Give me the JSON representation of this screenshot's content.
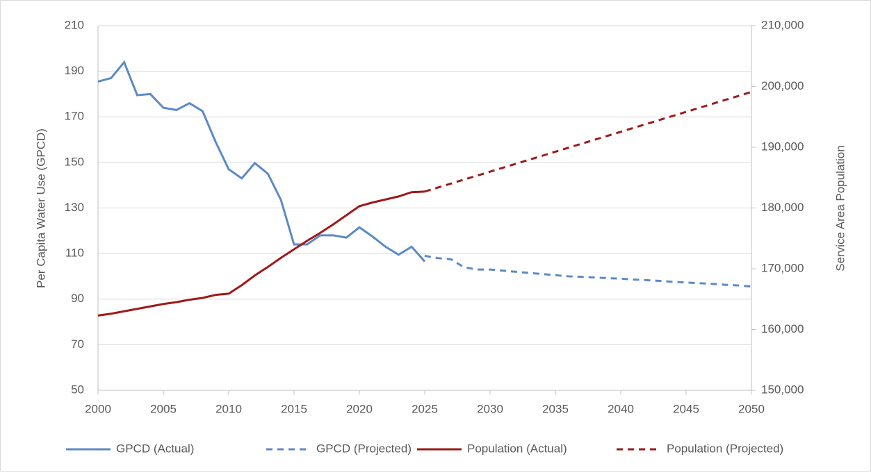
{
  "chart_data": {
    "type": "line",
    "y_label": "Per Capita Water Use (GPCD)",
    "y2_label": "Service Area Population",
    "x": [
      2000,
      2001,
      2002,
      2003,
      2004,
      2005,
      2006,
      2007,
      2008,
      2009,
      2010,
      2011,
      2012,
      2013,
      2014,
      2015,
      2016,
      2017,
      2018,
      2019,
      2020,
      2021,
      2022,
      2023,
      2024,
      2025,
      2026,
      2027,
      2028,
      2029,
      2030,
      2031,
      2032,
      2033,
      2034,
      2035,
      2036,
      2037,
      2038,
      2039,
      2040,
      2041,
      2042,
      2043,
      2044,
      2045,
      2046,
      2047,
      2048,
      2049,
      2050
    ],
    "xlim": [
      2000,
      2050
    ],
    "xticks": [
      2000,
      2005,
      2010,
      2015,
      2020,
      2025,
      2030,
      2035,
      2040,
      2045,
      2050
    ],
    "ylim": [
      50,
      210
    ],
    "yticks": [
      50,
      70,
      90,
      110,
      130,
      150,
      170,
      190,
      210
    ],
    "y2lim": [
      150000,
      210000
    ],
    "y2ticks": [
      {
        "value": 150000,
        "label": "150,000"
      },
      {
        "value": 160000,
        "label": "160,000"
      },
      {
        "value": 170000,
        "label": "170,000"
      },
      {
        "value": 180000,
        "label": "180,000"
      },
      {
        "value": 190000,
        "label": "190,000"
      },
      {
        "value": 200000,
        "label": "200,000"
      },
      {
        "value": 210000,
        "label": "210,000"
      }
    ],
    "grid": true,
    "legend": "bottom",
    "series": [
      {
        "name": "GPCD (Actual)",
        "color": "#5b8ac6",
        "dashed": false,
        "values": [
          185.5,
          187,
          194,
          179.5,
          180,
          174,
          173,
          176,
          172.5,
          159,
          147,
          143,
          149.7,
          145,
          133.5,
          114,
          114,
          118,
          118,
          117,
          121.5,
          117.5,
          113,
          109.5,
          113,
          106.5,
          null,
          null,
          null,
          null,
          null,
          null,
          null,
          null,
          null,
          null,
          null,
          null,
          null,
          null,
          null,
          null,
          null,
          null,
          null,
          null,
          null,
          null,
          null,
          null,
          null
        ]
      },
      {
        "name": "GPCD (Projected)",
        "color": "#5b8ac6",
        "dashed": true,
        "values": [
          null,
          null,
          null,
          null,
          null,
          null,
          null,
          null,
          null,
          null,
          null,
          null,
          null,
          null,
          null,
          null,
          null,
          null,
          null,
          null,
          null,
          null,
          null,
          null,
          null,
          109,
          108,
          107.5,
          104,
          103,
          103,
          102.5,
          102,
          101.5,
          101,
          100.5,
          100,
          99.8,
          99.5,
          99.2,
          99,
          98.6,
          98.3,
          98,
          97.6,
          97.3,
          97,
          96.7,
          96.3,
          96,
          95.5
        ]
      },
      {
        "name": "Population (Actual)",
        "color": "#9e1a1a",
        "dashed": false,
        "axis": "y2",
        "values": [
          162300,
          162600,
          163000,
          163400,
          163800,
          164200,
          164500,
          164900,
          165200,
          165700,
          165900,
          167300,
          168900,
          170300,
          171800,
          173200,
          174600,
          175900,
          177300,
          178800,
          180300,
          180900,
          181400,
          181900,
          182600,
          182700,
          null,
          null,
          null,
          null,
          null,
          null,
          null,
          null,
          null,
          null,
          null,
          null,
          null,
          null,
          null,
          null,
          null,
          null,
          null,
          null,
          null,
          null,
          null,
          null,
          null
        ]
      },
      {
        "name": "Population (Projected)",
        "color": "#9e1a1a",
        "dashed": true,
        "axis": "y2",
        "values": [
          null,
          null,
          null,
          null,
          null,
          null,
          null,
          null,
          null,
          null,
          null,
          null,
          null,
          null,
          null,
          null,
          null,
          null,
          null,
          null,
          null,
          null,
          null,
          null,
          null,
          182700,
          183360,
          184010,
          184670,
          185320,
          185980,
          186640,
          187290,
          187950,
          188600,
          189260,
          189920,
          190570,
          191230,
          191880,
          192540,
          193200,
          193850,
          194510,
          195160,
          195820,
          196480,
          197130,
          197790,
          198440,
          199100
        ]
      }
    ]
  }
}
